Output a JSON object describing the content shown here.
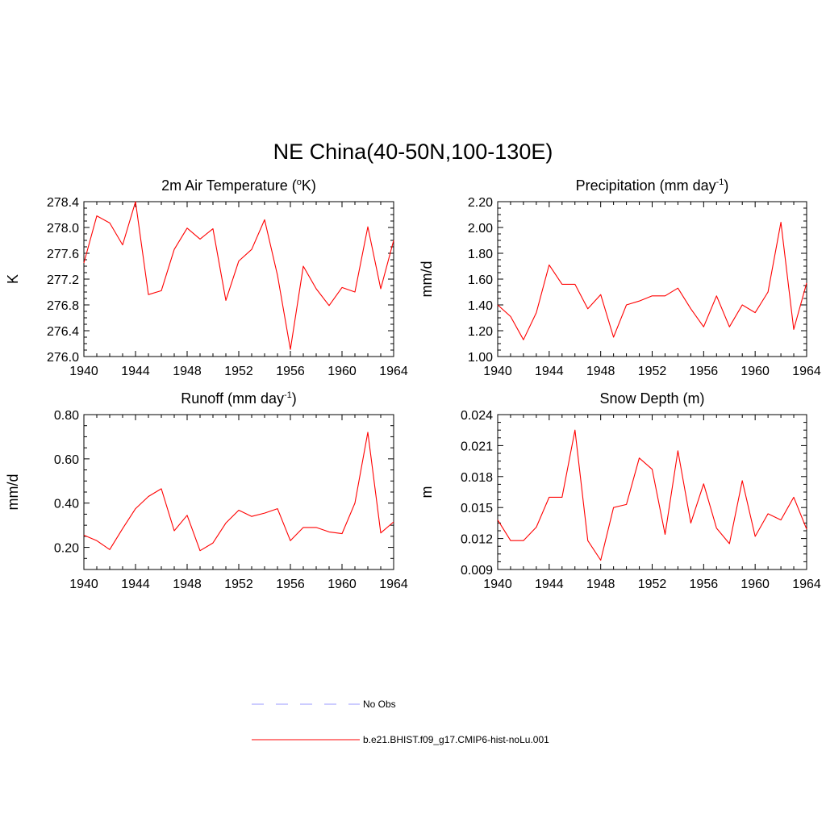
{
  "figure": {
    "title": "NE China(40-50N,100-130E)"
  },
  "legend": {
    "entries": [
      {
        "label": "No Obs",
        "color": "#9999ff",
        "style": "dashed"
      },
      {
        "label": "b.e21.BHIST.f09_g17.CMIP6-hist-noLu.001",
        "color": "#ff0000",
        "style": "solid"
      }
    ]
  },
  "chart_data": [
    {
      "type": "line",
      "title": "2m Air Temperature (",
      "title_sup": "o",
      "title_after": "K)",
      "ylabel": "K",
      "xlabel": "",
      "xlim": [
        1940,
        1964
      ],
      "ylim": [
        276.0,
        278.4
      ],
      "xticks": [
        "1940",
        "1944",
        "1948",
        "1952",
        "1956",
        "1960",
        "1964"
      ],
      "yticks": [
        "276.0",
        "276.4",
        "276.8",
        "277.2",
        "277.6",
        "278.0",
        "278.4"
      ],
      "series": [
        {
          "color": "#ff0000",
          "x": [
            1940,
            1941,
            1942,
            1943,
            1944,
            1945,
            1946,
            1947,
            1948,
            1949,
            1950,
            1951,
            1952,
            1953,
            1954,
            1955,
            1956,
            1957,
            1958,
            1959,
            1960,
            1961,
            1962,
            1963,
            1964
          ],
          "values": [
            277.45,
            278.18,
            278.07,
            277.73,
            278.4,
            276.96,
            277.02,
            277.66,
            277.99,
            277.82,
            277.98,
            276.87,
            277.48,
            277.66,
            278.12,
            277.26,
            276.11,
            277.4,
            277.05,
            276.79,
            277.07,
            277.0,
            278.01,
            277.05,
            277.8
          ]
        }
      ]
    },
    {
      "type": "line",
      "title": "Precipitation (mm day",
      "title_sup": "-1",
      "title_after": ")",
      "ylabel": "mm/d",
      "xlabel": "",
      "xlim": [
        1940,
        1964
      ],
      "ylim": [
        1.0,
        2.2
      ],
      "xticks": [
        "1940",
        "1944",
        "1948",
        "1952",
        "1956",
        "1960",
        "1964"
      ],
      "yticks": [
        "1.00",
        "1.20",
        "1.40",
        "1.60",
        "1.80",
        "2.00",
        "2.20"
      ],
      "series": [
        {
          "color": "#ff0000",
          "x": [
            1940,
            1941,
            1942,
            1943,
            1944,
            1945,
            1946,
            1947,
            1948,
            1949,
            1950,
            1951,
            1952,
            1953,
            1954,
            1955,
            1956,
            1957,
            1958,
            1959,
            1960,
            1961,
            1962,
            1963,
            1964
          ],
          "values": [
            1.4,
            1.31,
            1.13,
            1.34,
            1.71,
            1.56,
            1.56,
            1.37,
            1.48,
            1.15,
            1.4,
            1.43,
            1.47,
            1.47,
            1.53,
            1.37,
            1.23,
            1.47,
            1.23,
            1.4,
            1.34,
            1.5,
            2.04,
            1.21,
            1.57
          ]
        }
      ]
    },
    {
      "type": "line",
      "title": "Runoff (mm day",
      "title_sup": "-1",
      "title_after": ")",
      "ylabel": "mm/d",
      "xlabel": "",
      "xlim": [
        1940,
        1964
      ],
      "ylim": [
        0.1,
        0.8
      ],
      "xticks": [
        "1940",
        "1944",
        "1948",
        "1952",
        "1956",
        "1960",
        "1964"
      ],
      "yticks": [
        "0.20",
        "0.40",
        "0.60",
        "0.80"
      ],
      "ytick_values": [
        0.2,
        0.4,
        0.6,
        0.8
      ],
      "series": [
        {
          "color": "#ff0000",
          "x": [
            1940,
            1941,
            1942,
            1943,
            1944,
            1945,
            1946,
            1947,
            1948,
            1949,
            1950,
            1951,
            1952,
            1953,
            1954,
            1955,
            1956,
            1957,
            1958,
            1959,
            1960,
            1961,
            1962,
            1963,
            1964
          ],
          "values": [
            0.255,
            0.23,
            0.19,
            0.285,
            0.375,
            0.43,
            0.465,
            0.275,
            0.345,
            0.185,
            0.22,
            0.31,
            0.368,
            0.34,
            0.355,
            0.375,
            0.23,
            0.29,
            0.29,
            0.27,
            0.262,
            0.4,
            0.72,
            0.265,
            0.315
          ]
        }
      ]
    },
    {
      "type": "line",
      "title": "Snow Depth (m)",
      "title_sup": "",
      "title_after": "",
      "ylabel": "m",
      "xlabel": "",
      "xlim": [
        1940,
        1964
      ],
      "ylim": [
        0.009,
        0.024
      ],
      "xticks": [
        "1940",
        "1944",
        "1948",
        "1952",
        "1956",
        "1960",
        "1964"
      ],
      "yticks": [
        "0.009",
        "0.012",
        "0.015",
        "0.018",
        "0.021",
        "0.024"
      ],
      "series": [
        {
          "color": "#ff0000",
          "x": [
            1940,
            1941,
            1942,
            1943,
            1944,
            1945,
            1946,
            1947,
            1948,
            1949,
            1950,
            1951,
            1952,
            1953,
            1954,
            1955,
            1956,
            1957,
            1958,
            1959,
            1960,
            1961,
            1962,
            1963,
            1964
          ],
          "values": [
            0.0138,
            0.0118,
            0.0118,
            0.0131,
            0.016,
            0.016,
            0.0225,
            0.0118,
            0.0099,
            0.015,
            0.0153,
            0.0198,
            0.0187,
            0.0124,
            0.0205,
            0.0135,
            0.0173,
            0.013,
            0.0115,
            0.0176,
            0.0122,
            0.0144,
            0.0138,
            0.016,
            0.0129
          ]
        }
      ]
    }
  ]
}
